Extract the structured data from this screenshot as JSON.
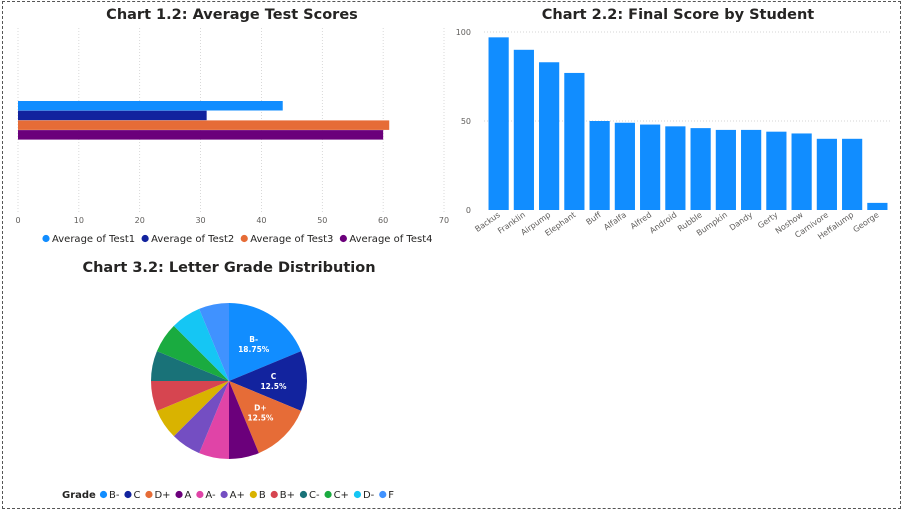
{
  "chart_data": [
    {
      "type": "bar",
      "orientation": "horizontal",
      "title": "Chart 1.2: Average Test Scores",
      "xlim": [
        0,
        70
      ],
      "xticks": [
        0,
        10,
        20,
        30,
        40,
        50,
        60,
        70
      ],
      "grid": true,
      "legend_position": "bottom",
      "series": [
        {
          "name": "Average of Test1",
          "value": 43.5,
          "color": "#118DFF"
        },
        {
          "name": "Average of Test2",
          "value": 31,
          "color": "#12239E"
        },
        {
          "name": "Average of Test3",
          "value": 61,
          "color": "#E66C37"
        },
        {
          "name": "Average of Test4",
          "value": 60,
          "color": "#6B007B"
        }
      ]
    },
    {
      "type": "bar",
      "title": "Chart 2.2: Final Score by Student",
      "ylim": [
        0,
        100
      ],
      "yticks": [
        0,
        50,
        100
      ],
      "grid": true,
      "color": "#118DFF",
      "categories": [
        "Backus",
        "Franklin",
        "Airpump",
        "Elephant",
        "Buff",
        "Alfalfa",
        "Alfred",
        "Android",
        "Rubble",
        "Bumpkin",
        "Dandy",
        "Gerty",
        "Noshow",
        "Carnivore",
        "Heffalump",
        "George"
      ],
      "values": [
        97,
        90,
        83,
        77,
        50,
        49,
        48,
        47,
        46,
        45,
        45,
        44,
        43,
        40,
        40,
        4
      ]
    },
    {
      "type": "pie",
      "title": "Chart 3.2: Letter Grade Distribution",
      "legend_title": "Grade",
      "legend_position": "bottom",
      "slices": [
        {
          "label": "B-",
          "value": 18.75,
          "color": "#118DFF",
          "show_label": true,
          "label_text": "B-",
          "percent_text": "18.75%"
        },
        {
          "label": "C",
          "value": 12.5,
          "color": "#12239E",
          "show_label": true,
          "label_text": "C",
          "percent_text": "12.5%"
        },
        {
          "label": "D+",
          "value": 12.5,
          "color": "#E66C37",
          "show_label": true,
          "label_text": "D+",
          "percent_text": "12.5%"
        },
        {
          "label": "A",
          "value": 6.25,
          "color": "#6B007B",
          "show_label": false
        },
        {
          "label": "A-",
          "value": 6.25,
          "color": "#E044A7",
          "show_label": false
        },
        {
          "label": "A+",
          "value": 6.25,
          "color": "#744EC2",
          "show_label": false
        },
        {
          "label": "B",
          "value": 6.25,
          "color": "#D9B300",
          "show_label": false
        },
        {
          "label": "B+",
          "value": 6.25,
          "color": "#D64550",
          "show_label": false
        },
        {
          "label": "C-",
          "value": 6.25,
          "color": "#197278",
          "show_label": false
        },
        {
          "label": "C+",
          "value": 6.25,
          "color": "#1AAB40",
          "show_label": false
        },
        {
          "label": "D-",
          "value": 6.25,
          "color": "#15C6F4",
          "show_label": false
        },
        {
          "label": "F",
          "value": 6.25,
          "color": "#4092FF",
          "show_label": false
        }
      ]
    }
  ]
}
